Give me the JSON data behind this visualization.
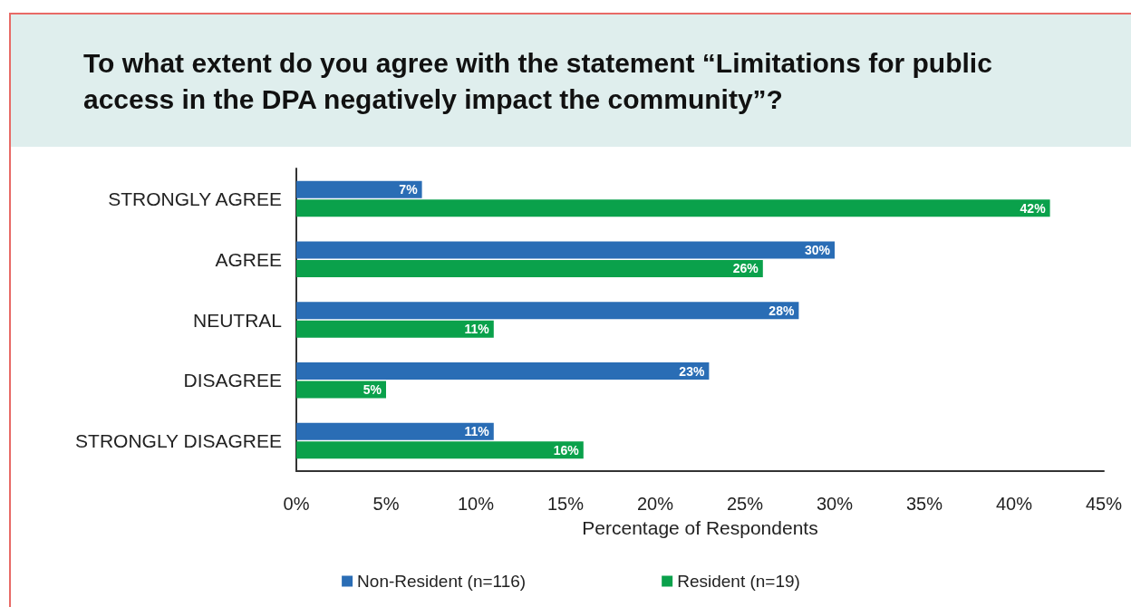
{
  "chart_data": {
    "type": "bar",
    "orientation": "horizontal",
    "title": "To what extent do you agree with the statement “Limitations for public access in the DPA negatively impact the community”?",
    "categories": [
      "STRONGLY AGREE",
      "AGREE",
      "NEUTRAL",
      "DISAGREE",
      "STRONGLY DISAGREE"
    ],
    "series": [
      {
        "name": "Non-Resident (n=116)",
        "color": "#2a6db5",
        "values": [
          7,
          30,
          28,
          23,
          11
        ],
        "value_labels": [
          "7%",
          "30%",
          "28%",
          "23%",
          "11%"
        ]
      },
      {
        "name": "Resident (n=19)",
        "color": "#0aa14b",
        "values": [
          42,
          26,
          11,
          5,
          16
        ],
        "value_labels": [
          "42%",
          "26%",
          "11%",
          "5%",
          "16%"
        ]
      }
    ],
    "xlabel": "Percentage of Respondents",
    "xlim": [
      0,
      45
    ],
    "xticks": [
      {
        "value": 0,
        "label": "0%"
      },
      {
        "value": 5,
        "label": "5%"
      },
      {
        "value": 10,
        "label": "10%"
      },
      {
        "value": 15,
        "label": "15%"
      },
      {
        "value": 20,
        "label": "20%"
      },
      {
        "value": 25,
        "label": "25%"
      },
      {
        "value": 30,
        "label": "30%"
      },
      {
        "value": 35,
        "label": "35%"
      },
      {
        "value": 40,
        "label": "40%"
      },
      {
        "value": 45,
        "label": "45%"
      }
    ],
    "legend": "bottom",
    "grid": false
  }
}
